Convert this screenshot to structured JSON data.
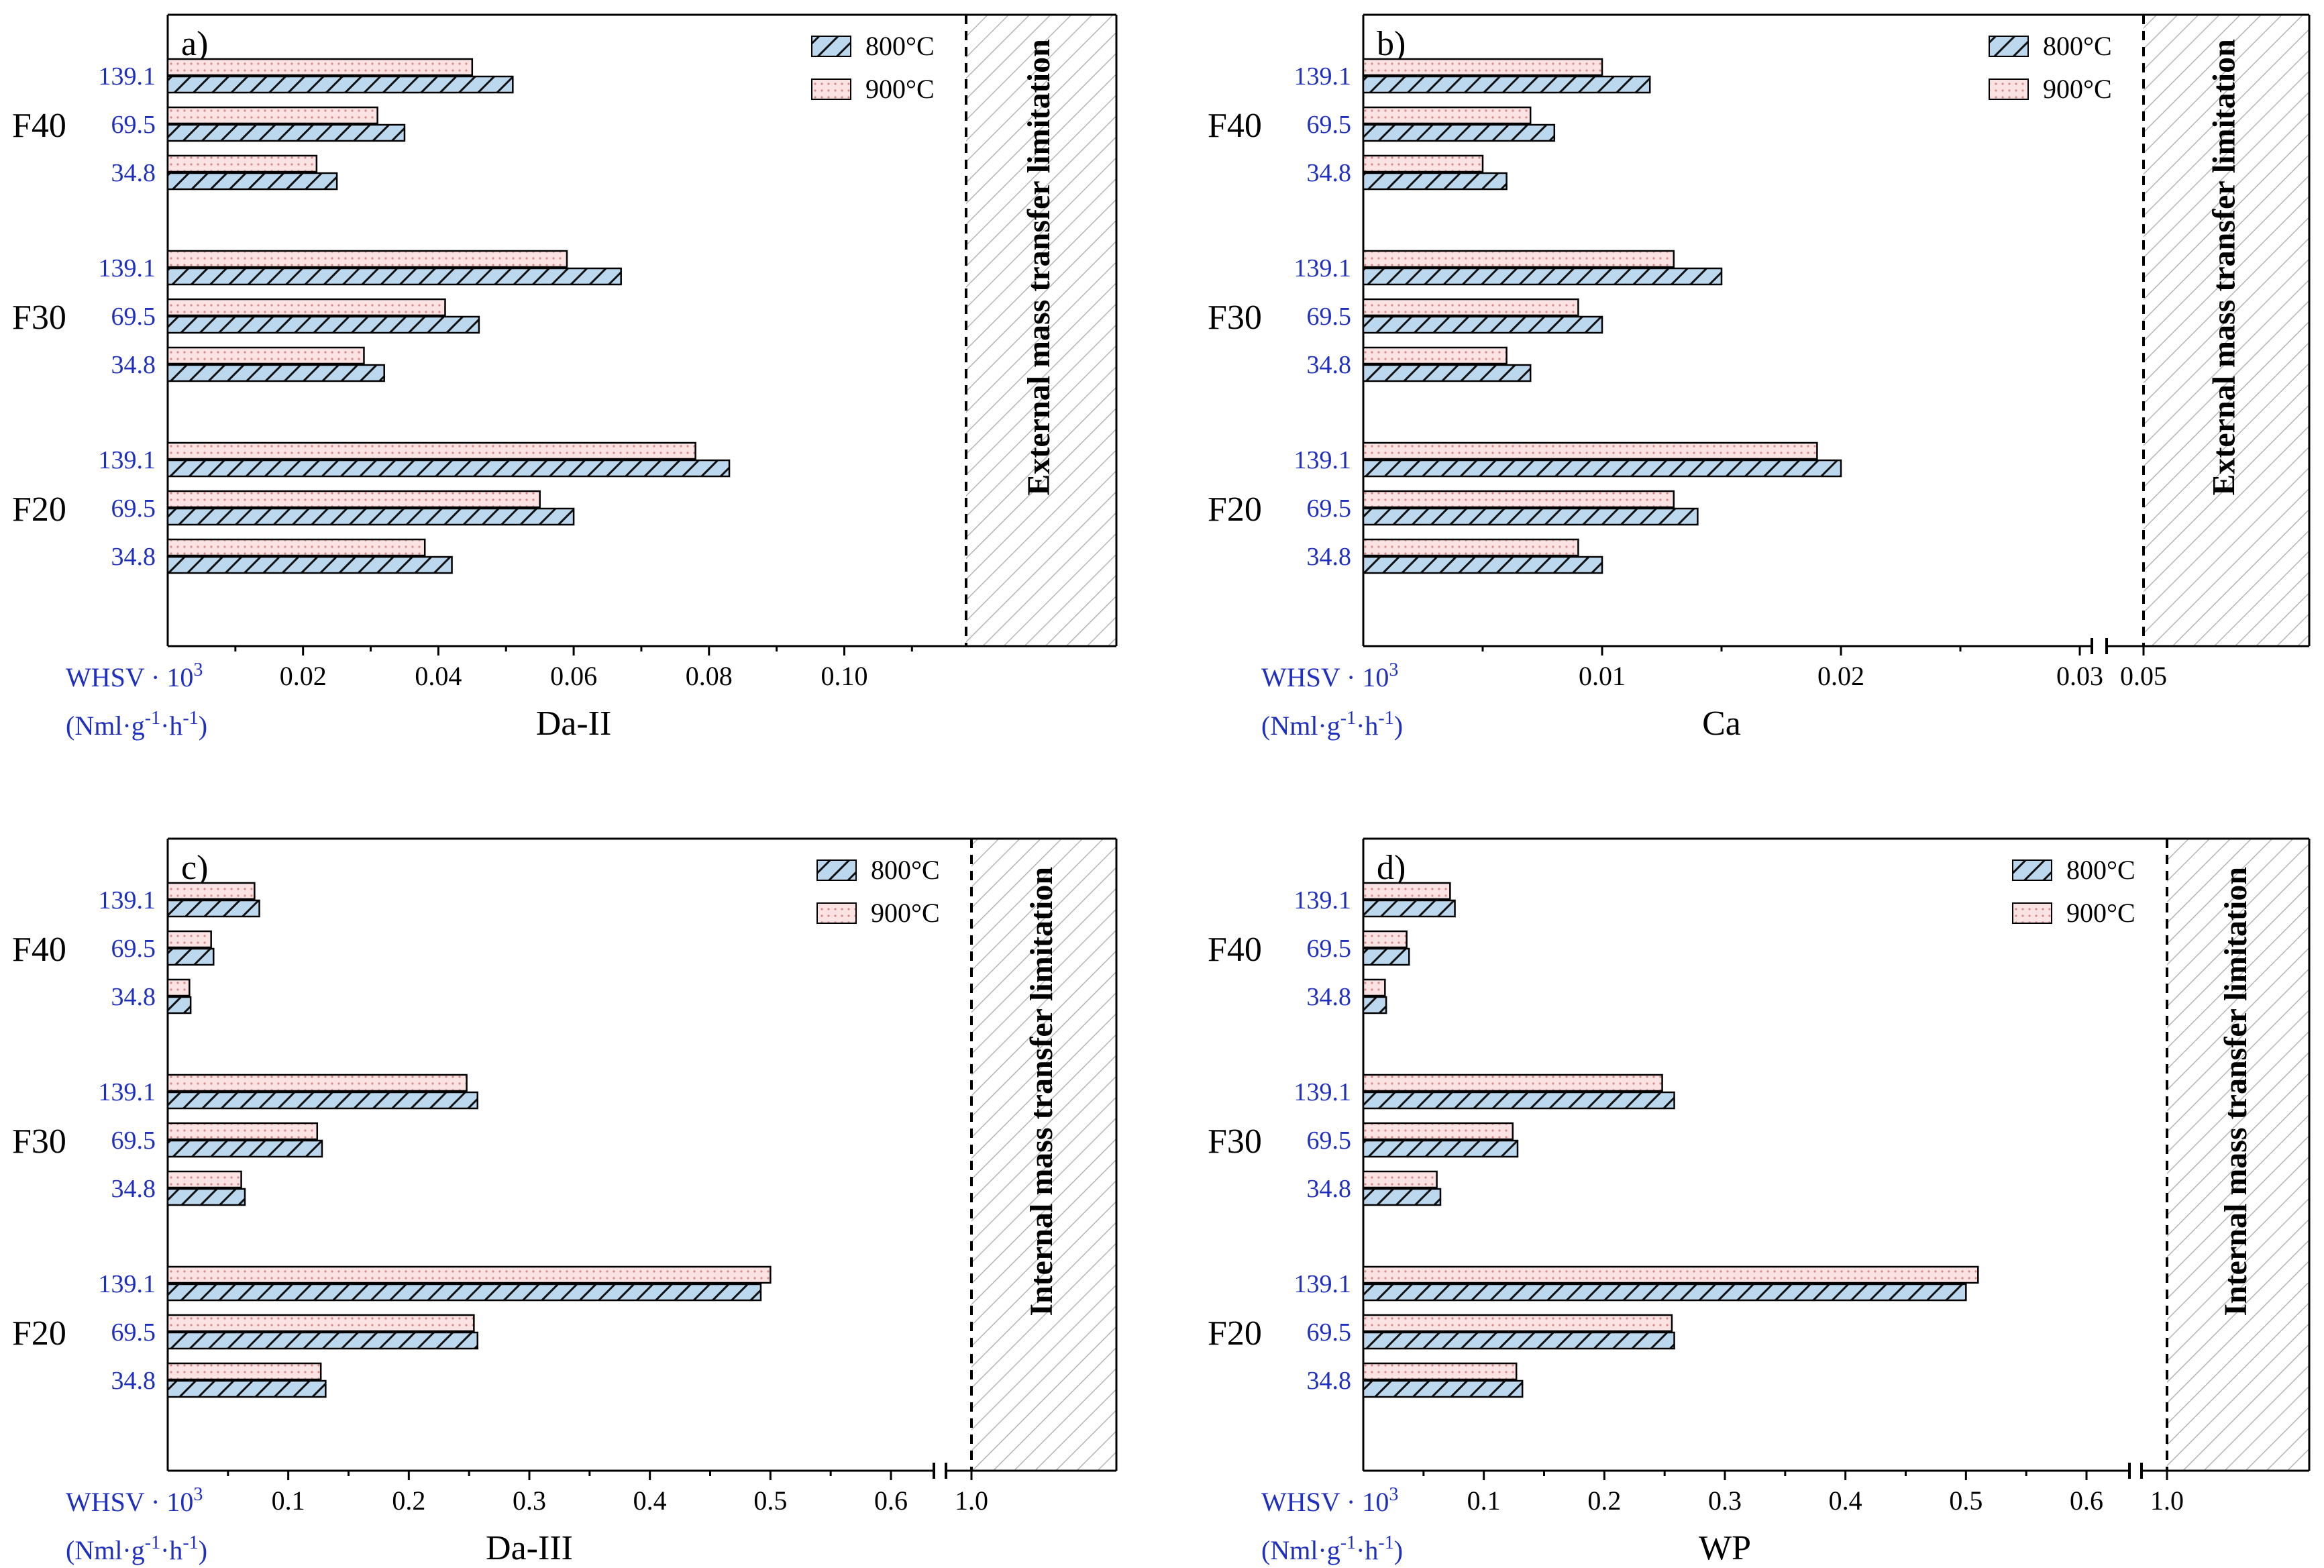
{
  "colors": {
    "series_800_fill": "#bcd8ee",
    "series_900_fill": "#fbe3e3",
    "series_900_dot": "#d98a8a",
    "whsv_text": "#1f2fbf",
    "limit_hatch": "#b5b5b5"
  },
  "whsv_label": {
    "line1": "WHSV · 10",
    "sup": "3",
    "line2": "(Nml·g",
    "sup2": "-1",
    "mid": "·h",
    "sup3": "-1",
    "end": ")"
  },
  "chart_data": [
    {
      "type": "bar",
      "panel_label": "a)",
      "xlabel": "Da-II",
      "groups": [
        "F40",
        "F30",
        "F20"
      ],
      "whsv": [
        "139.1",
        "69.5",
        "34.8"
      ],
      "series": [
        {
          "name": "800°C",
          "values": {
            "F40": [
              0.051,
              0.035,
              0.025
            ],
            "F30": [
              0.067,
              0.046,
              0.032
            ],
            "F20": [
              0.083,
              0.06,
              0.042
            ]
          }
        },
        {
          "name": "900°C",
          "values": {
            "F40": [
              0.045,
              0.031,
              0.022
            ],
            "F30": [
              0.059,
              0.041,
              0.029
            ],
            "F20": [
              0.078,
              0.055,
              0.038
            ]
          }
        }
      ],
      "xlim": [
        0,
        0.118
      ],
      "ticks": [
        "0.02",
        "0.04",
        "0.06",
        "0.08",
        "0.10"
      ],
      "tick_values": [
        0.02,
        0.04,
        0.06,
        0.08,
        0.1
      ],
      "limit_value": 0.1,
      "limit_label": "External mass transfer limitation",
      "broken_axis": false
    },
    {
      "type": "bar",
      "panel_label": "b)",
      "xlabel": "Ca",
      "groups": [
        "F40",
        "F30",
        "F20"
      ],
      "whsv": [
        "139.1",
        "69.5",
        "34.8"
      ],
      "series": [
        {
          "name": "800°C",
          "values": {
            "F40": [
              0.012,
              0.008,
              0.006
            ],
            "F30": [
              0.015,
              0.01,
              0.007
            ],
            "F20": [
              0.02,
              0.014,
              0.01
            ]
          }
        },
        {
          "name": "900°C",
          "values": {
            "F40": [
              0.01,
              0.007,
              0.005
            ],
            "F30": [
              0.013,
              0.009,
              0.006
            ],
            "F20": [
              0.019,
              0.013,
              0.009
            ]
          }
        }
      ],
      "xlim": [
        0,
        0.03
      ],
      "ticks": [
        "0.01",
        "0.02",
        "0.03"
      ],
      "tick_values": [
        0.01,
        0.02,
        0.03
      ],
      "limit_value": 0.05,
      "limit_tick": "0.05",
      "limit_label": "External mass transfer limitation",
      "broken_axis": true
    },
    {
      "type": "bar",
      "panel_label": "c)",
      "xlabel": "Da-III",
      "groups": [
        "F40",
        "F30",
        "F20"
      ],
      "whsv": [
        "139.1",
        "69.5",
        "34.8"
      ],
      "series": [
        {
          "name": "800°C",
          "values": {
            "F40": [
              0.076,
              0.038,
              0.019
            ],
            "F30": [
              0.257,
              0.128,
              0.064
            ],
            "F20": [
              0.492,
              0.257,
              0.131
            ]
          }
        },
        {
          "name": "900°C",
          "values": {
            "F40": [
              0.072,
              0.036,
              0.018
            ],
            "F30": [
              0.248,
              0.124,
              0.061
            ],
            "F20": [
              0.5,
              0.254,
              0.127
            ]
          }
        }
      ],
      "xlim": [
        0,
        0.6
      ],
      "ticks": [
        "0.1",
        "0.2",
        "0.3",
        "0.4",
        "0.5",
        "0.6"
      ],
      "tick_values": [
        0.1,
        0.2,
        0.3,
        0.4,
        0.5,
        0.6
      ],
      "limit_value": 1.0,
      "limit_tick": "1.0",
      "limit_label": "Internal mass transfer limitation",
      "broken_axis": true
    },
    {
      "type": "bar",
      "panel_label": "d)",
      "xlabel": "WP",
      "groups": [
        "F40",
        "F30",
        "F20"
      ],
      "whsv": [
        "139.1",
        "69.5",
        "34.8"
      ],
      "series": [
        {
          "name": "800°C",
          "values": {
            "F40": [
              0.076,
              0.038,
              0.019
            ],
            "F30": [
              0.258,
              0.128,
              0.064
            ],
            "F20": [
              0.5,
              0.258,
              0.132
            ]
          }
        },
        {
          "name": "900°C",
          "values": {
            "F40": [
              0.072,
              0.036,
              0.018
            ],
            "F30": [
              0.248,
              0.124,
              0.061
            ],
            "F20": [
              0.51,
              0.256,
              0.127
            ]
          }
        }
      ],
      "xlim": [
        0,
        0.6
      ],
      "ticks": [
        "0.1",
        "0.2",
        "0.3",
        "0.4",
        "0.5",
        "0.6"
      ],
      "tick_values": [
        0.1,
        0.2,
        0.3,
        0.4,
        0.5,
        0.6
      ],
      "limit_value": 1.0,
      "limit_tick": "1.0",
      "limit_label": "Internal mass transfer limitation",
      "broken_axis": true
    }
  ]
}
